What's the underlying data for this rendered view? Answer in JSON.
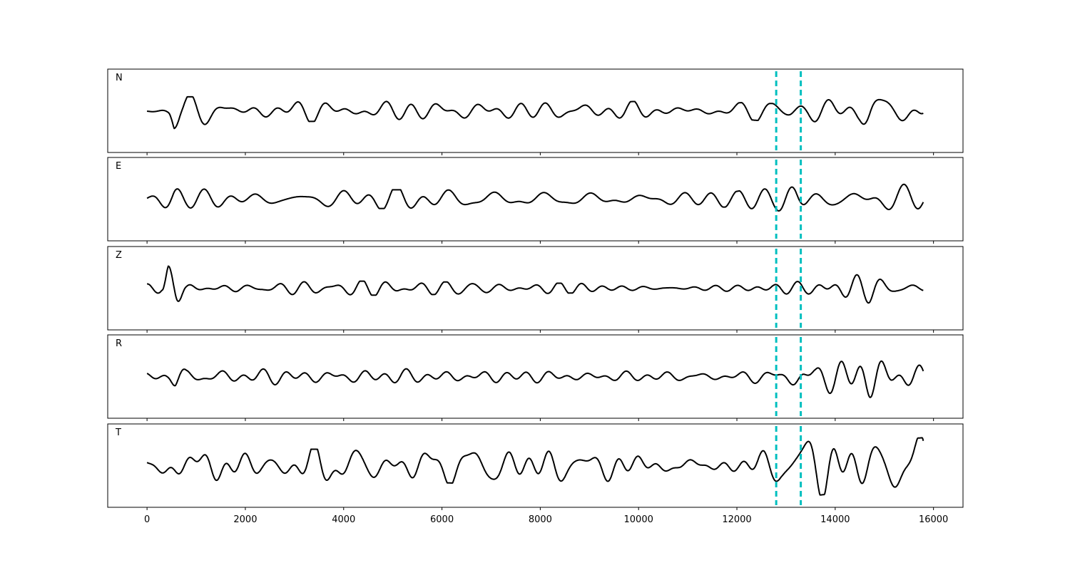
{
  "chart_data": {
    "type": "line",
    "xlim": [
      -800,
      16600
    ],
    "x_ticks": [
      "0",
      "2000",
      "4000",
      "6000",
      "8000",
      "10000",
      "12000",
      "14000",
      "16000"
    ],
    "grid": false,
    "x_range_data": [
      0,
      15800
    ],
    "markers": {
      "color": "#00bfbf",
      "style": "dashed",
      "x": [
        12800,
        13300
      ]
    },
    "panels": [
      {
        "label": "N",
        "ylim": [
          -1,
          1
        ],
        "y_ticks": []
      },
      {
        "label": "E",
        "ylim": [
          -1,
          1
        ],
        "y_ticks": []
      },
      {
        "label": "Z",
        "ylim": [
          -1,
          1
        ],
        "y_ticks": []
      },
      {
        "label": "R",
        "ylim": [
          -1,
          1
        ],
        "y_ticks": []
      },
      {
        "label": "T",
        "ylim": [
          -1,
          1
        ],
        "y_ticks": []
      }
    ]
  }
}
